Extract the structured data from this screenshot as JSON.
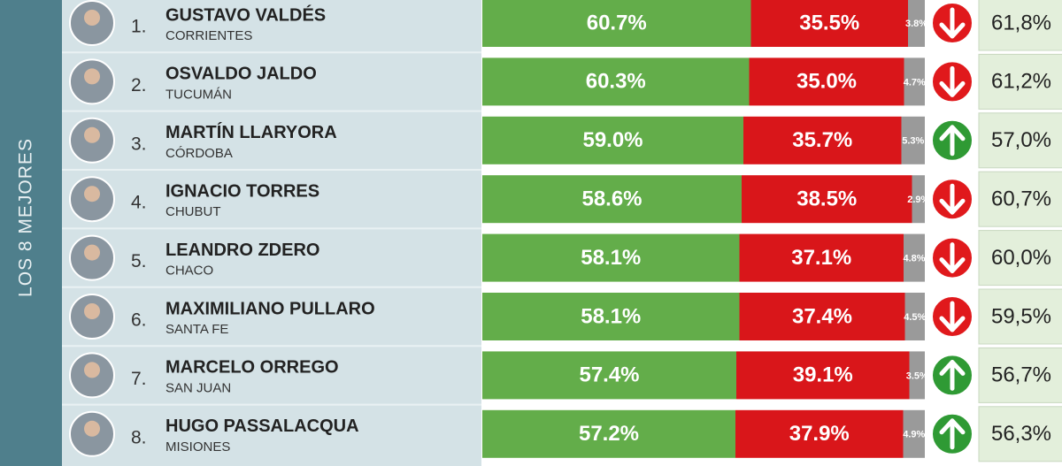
{
  "side_label": "LOS 8 MEJORES",
  "rows": [
    {
      "rank": "1.",
      "name": "GUSTAVO VALDÉS",
      "province": "CORRIENTES",
      "values": [
        60.7,
        35.5,
        3.8
      ],
      "value_labels": [
        "60.7%",
        "35.5%",
        "3.8%"
      ],
      "trend": "down",
      "previous": "61,8%"
    },
    {
      "rank": "2.",
      "name": "OSVALDO JALDO",
      "province": "TUCUMÁN",
      "values": [
        60.3,
        35.0,
        4.7
      ],
      "value_labels": [
        "60.3%",
        "35.0%",
        "4.7%"
      ],
      "trend": "down",
      "previous": "61,2%"
    },
    {
      "rank": "3.",
      "name": "MARTÍN LLARYORA",
      "province": "CÓRDOBA",
      "values": [
        59.0,
        35.7,
        5.3
      ],
      "value_labels": [
        "59.0%",
        "35.7%",
        "5.3%"
      ],
      "trend": "up",
      "previous": "57,0%"
    },
    {
      "rank": "4.",
      "name": "IGNACIO TORRES",
      "province": "CHUBUT",
      "values": [
        58.6,
        38.5,
        2.9
      ],
      "value_labels": [
        "58.6%",
        "38.5%",
        "2.9%"
      ],
      "trend": "down",
      "previous": "60,7%"
    },
    {
      "rank": "5.",
      "name": "LEANDRO ZDERO",
      "province": "CHACO",
      "values": [
        58.1,
        37.1,
        4.8
      ],
      "value_labels": [
        "58.1%",
        "37.1%",
        "4.8%"
      ],
      "trend": "down",
      "previous": "60,0%"
    },
    {
      "rank": "6.",
      "name": "MAXIMILIANO PULLARO",
      "province": "SANTA FE",
      "values": [
        58.1,
        37.4,
        4.5
      ],
      "value_labels": [
        "58.1%",
        "37.4%",
        "4.5%"
      ],
      "trend": "down",
      "previous": "59,5%"
    },
    {
      "rank": "7.",
      "name": "MARCELO ORREGO",
      "province": "SAN JUAN",
      "values": [
        57.4,
        39.1,
        3.5
      ],
      "value_labels": [
        "57.4%",
        "39.1%",
        "3.5%"
      ],
      "trend": "up",
      "previous": "56,7%"
    },
    {
      "rank": "8.",
      "name": "HUGO PASSALACQUA",
      "province": "MISIONES",
      "values": [
        57.2,
        37.9,
        4.9
      ],
      "value_labels": [
        "57.2%",
        "37.9%",
        "4.9%"
      ],
      "trend": "up",
      "previous": "56,3%"
    }
  ]
}
